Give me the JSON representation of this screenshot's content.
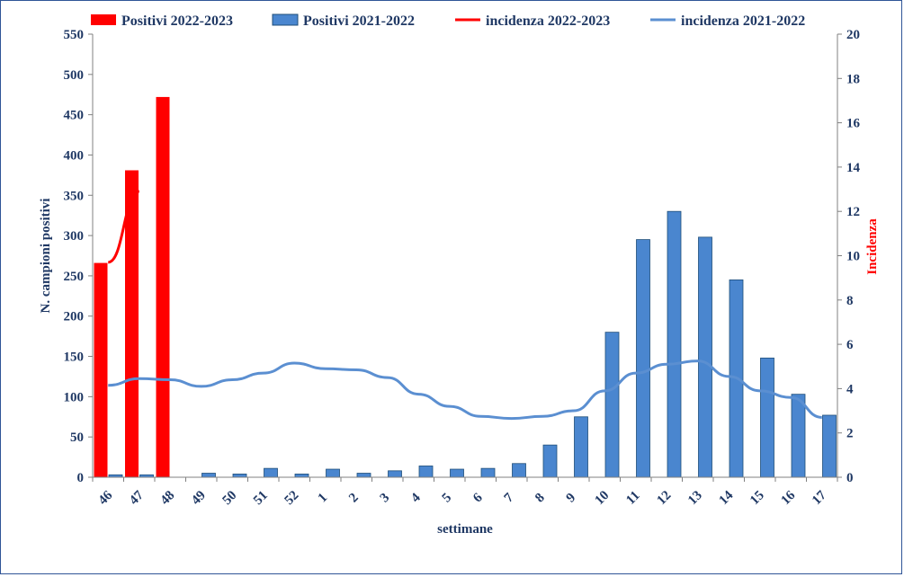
{
  "chart_data": {
    "type": "bar",
    "categories": [
      "46",
      "47",
      "48",
      "49",
      "50",
      "51",
      "52",
      "1",
      "2",
      "3",
      "4",
      "5",
      "6",
      "7",
      "8",
      "9",
      "10",
      "11",
      "12",
      "13",
      "14",
      "15",
      "16",
      "17"
    ],
    "series": [
      {
        "name": "Positivi 2022-2023",
        "kind": "bar",
        "axis": "left",
        "color": "#ff0000",
        "values": [
          266,
          381,
          472,
          null,
          null,
          null,
          null,
          null,
          null,
          null,
          null,
          null,
          null,
          null,
          null,
          null,
          null,
          null,
          null,
          null,
          null,
          null,
          null,
          null
        ]
      },
      {
        "name": "Positivi 2021-2022",
        "kind": "bar",
        "axis": "left",
        "color": "#4a86cf",
        "values": [
          3,
          3,
          0,
          5,
          4,
          11,
          4,
          10,
          5,
          8,
          14,
          10,
          11,
          17,
          40,
          75,
          180,
          295,
          330,
          298,
          245,
          148,
          103,
          77
        ]
      },
      {
        "name": "incidenza 2022-2023",
        "kind": "line",
        "axis": "right",
        "color": "#ff0000",
        "values": [
          9.7,
          12.9,
          null,
          null,
          null,
          null,
          null,
          null,
          null,
          null,
          null,
          null,
          null,
          null,
          null,
          null,
          null,
          null,
          null,
          null,
          null,
          null,
          null,
          null
        ]
      },
      {
        "name": "incidenza 2021-2022",
        "kind": "line",
        "axis": "right",
        "color": "#5b8fd1",
        "values": [
          4.15,
          4.45,
          4.4,
          4.1,
          4.4,
          4.7,
          5.15,
          4.9,
          4.85,
          4.5,
          3.75,
          3.2,
          2.75,
          2.65,
          2.75,
          3.0,
          3.9,
          4.7,
          5.1,
          5.25,
          4.55,
          3.9,
          3.6,
          2.7
        ]
      }
    ],
    "xlabel": "settimane",
    "ylabel": "N. campioni positivi",
    "y2label": "Incidenza",
    "ylim": [
      0,
      550
    ],
    "y2lim": [
      0,
      20
    ],
    "yticks": [
      "0",
      "50",
      "100",
      "150",
      "200",
      "250",
      "300",
      "350",
      "400",
      "450",
      "500",
      "550"
    ],
    "y2ticks": [
      "0",
      "2",
      "4",
      "6",
      "8",
      "10",
      "12",
      "14",
      "16",
      "18",
      "20"
    ],
    "grid": false,
    "legend_position": "top"
  }
}
